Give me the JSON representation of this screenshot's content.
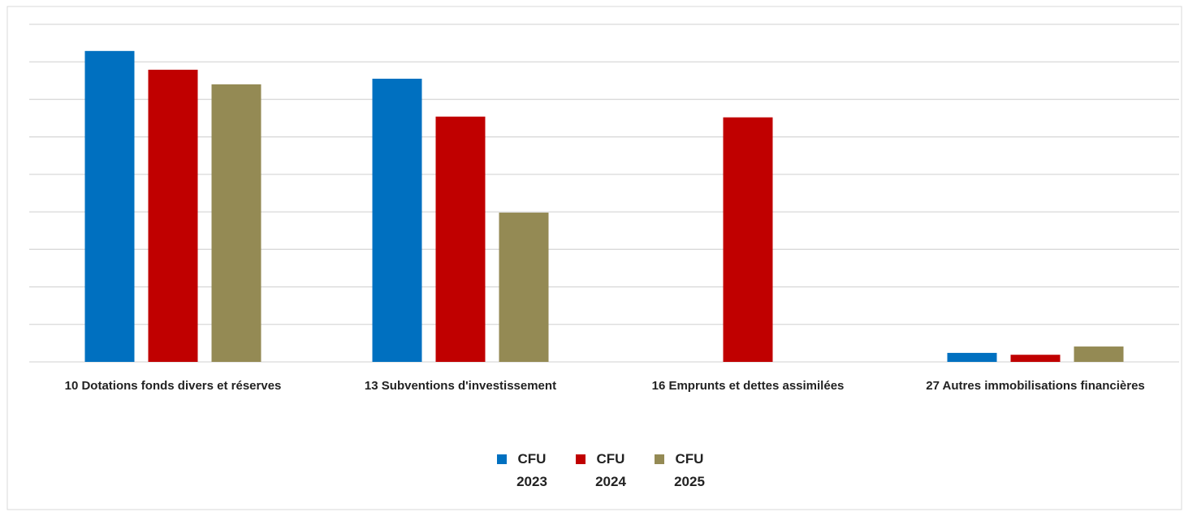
{
  "chart_data": {
    "type": "bar",
    "categories": [
      "10 Dotations fonds divers et réserves",
      "13 Subventions d'investissement",
      "16 Emprunts et dettes assimilées",
      "27 Autres immobilisations financières"
    ],
    "series": [
      {
        "name": "CFU 2023",
        "color": "#0070c0",
        "values": [
          8.29,
          7.55,
          0,
          0.24
        ]
      },
      {
        "name": "CFU 2024",
        "color": "#c00000",
        "values": [
          7.79,
          6.54,
          6.52,
          0.19
        ]
      },
      {
        "name": "CFU 2025",
        "color": "#948a54",
        "values": [
          7.4,
          3.98,
          0,
          0.41
        ]
      }
    ],
    "ylim": [
      0,
      9
    ],
    "yticks": [
      0,
      1,
      2,
      3,
      4,
      5,
      6,
      7,
      8,
      9
    ],
    "grid": true,
    "legend": "bottom"
  }
}
